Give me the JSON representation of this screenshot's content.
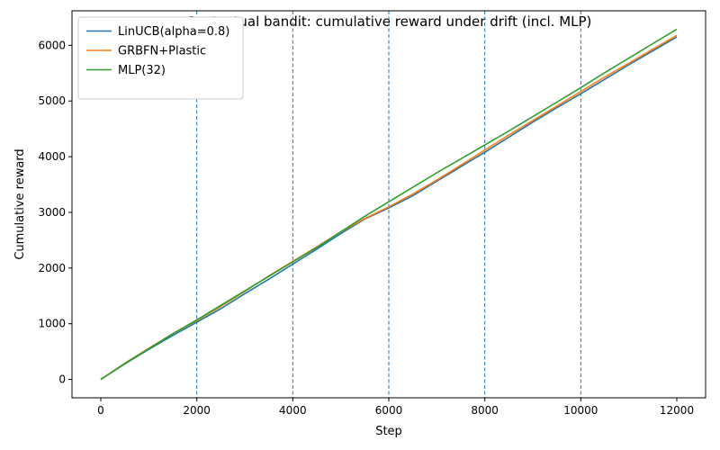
{
  "chart_data": {
    "type": "line",
    "title": "Contextual bandit: cumulative reward under drift (incl. MLP)",
    "xlabel": "Step",
    "ylabel": "Cumulative reward",
    "xlim": [
      -600,
      12600
    ],
    "ylim": [
      -330,
      6620
    ],
    "xticks": [
      0,
      2000,
      4000,
      6000,
      8000,
      10000,
      12000
    ],
    "yticks": [
      0,
      1000,
      2000,
      3000,
      4000,
      5000,
      6000
    ],
    "xtick_labels": [
      "0",
      "2000",
      "4000",
      "6000",
      "8000",
      "10000",
      "12000"
    ],
    "ytick_labels": [
      "0",
      "1000",
      "2000",
      "3000",
      "4000",
      "5000",
      "6000"
    ],
    "grid": false,
    "legend_position": "upper-left",
    "vlines": [
      2000,
      4000,
      6000,
      8000,
      10000
    ],
    "vline_color": "#1f77b4",
    "series": [
      {
        "name": "LinUCB(alpha=0.8)",
        "color": "#1f77b4",
        "x": [
          0,
          500,
          1000,
          1500,
          2000,
          2500,
          3000,
          3500,
          4000,
          4500,
          5000,
          5500,
          6000,
          6500,
          7000,
          7500,
          8000,
          8500,
          9000,
          9500,
          10000,
          10500,
          11000,
          11500,
          12000
        ],
        "y": [
          0,
          280,
          540,
          790,
          1030,
          1270,
          1540,
          1800,
          2070,
          2340,
          2620,
          2880,
          3080,
          3300,
          3560,
          3820,
          4080,
          4350,
          4620,
          4880,
          5130,
          5390,
          5650,
          5900,
          6150
        ]
      },
      {
        "name": "GRBFN+Plastic",
        "color": "#ff7f0e",
        "x": [
          0,
          500,
          1000,
          1500,
          2000,
          2500,
          3000,
          3500,
          4000,
          4500,
          5000,
          5500,
          6000,
          6500,
          7000,
          7500,
          8000,
          8500,
          9000,
          9500,
          10000,
          10500,
          11000,
          11500,
          12000
        ],
        "y": [
          0,
          290,
          560,
          820,
          1060,
          1310,
          1580,
          1860,
          2120,
          2380,
          2650,
          2890,
          3100,
          3330,
          3580,
          3850,
          4120,
          4390,
          4650,
          4910,
          5170,
          5430,
          5680,
          5930,
          6180
        ]
      },
      {
        "name": "MLP(32)",
        "color": "#2ca02c",
        "x": [
          0,
          500,
          1000,
          1500,
          2000,
          2500,
          3000,
          3500,
          4000,
          4500,
          5000,
          5500,
          6000,
          6500,
          7000,
          7500,
          8000,
          8500,
          9000,
          9500,
          10000,
          10500,
          11000,
          11500,
          12000
        ],
        "y": [
          0,
          285,
          550,
          820,
          1070,
          1330,
          1590,
          1850,
          2110,
          2370,
          2650,
          2930,
          3190,
          3450,
          3710,
          3960,
          4210,
          4460,
          4720,
          4980,
          5240,
          5510,
          5770,
          6030,
          6290
        ]
      }
    ]
  }
}
